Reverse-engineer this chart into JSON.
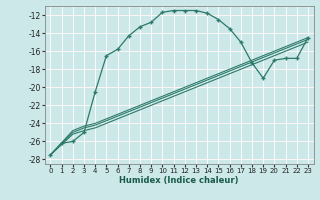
{
  "xlabel": "Humidex (Indice chaleur)",
  "ylabel": "",
  "bg_color": "#cce8e8",
  "line_color": "#2d7a6a",
  "grid_color": "#b0d0d0",
  "xlim": [
    -0.5,
    23.5
  ],
  "ylim": [
    -28.5,
    -11.0
  ],
  "xticks": [
    0,
    1,
    2,
    3,
    4,
    5,
    6,
    7,
    8,
    9,
    10,
    11,
    12,
    13,
    14,
    15,
    16,
    17,
    18,
    19,
    20,
    21,
    22,
    23
  ],
  "yticks": [
    -28,
    -26,
    -24,
    -22,
    -20,
    -18,
    -16,
    -14,
    -12
  ],
  "line1_x": [
    0,
    1,
    2,
    3,
    4,
    5,
    6,
    7,
    8,
    9,
    10,
    11,
    12,
    13,
    14,
    15,
    16,
    17,
    18,
    19,
    20,
    21,
    22,
    23
  ],
  "line1_y": [
    -27.5,
    -26.2,
    -26.0,
    -25.0,
    -20.5,
    -16.5,
    -15.8,
    -14.3,
    -13.3,
    -12.8,
    -11.7,
    -11.5,
    -11.5,
    -11.5,
    -11.8,
    -12.5,
    -13.5,
    -15.0,
    -17.3,
    -19.0,
    -17.0,
    -16.8,
    -16.8,
    -14.5
  ],
  "line2_x": [
    0,
    2,
    3,
    4,
    5,
    6,
    7,
    8,
    9,
    10,
    11,
    12,
    13,
    14,
    15,
    16,
    17,
    18,
    19,
    20,
    21,
    22,
    23
  ],
  "line2_y": [
    -27.5,
    -25.2,
    -24.8,
    -24.5,
    -24.0,
    -23.5,
    -23.0,
    -22.5,
    -22.0,
    -21.5,
    -21.0,
    -20.5,
    -20.0,
    -19.5,
    -19.0,
    -18.5,
    -18.0,
    -17.5,
    -17.0,
    -16.5,
    -16.0,
    -15.5,
    -15.0
  ],
  "line3_x": [
    0,
    2,
    3,
    4,
    5,
    6,
    7,
    8,
    9,
    10,
    11,
    12,
    13,
    14,
    15,
    16,
    17,
    18,
    19,
    20,
    21,
    22,
    23
  ],
  "line3_y": [
    -27.5,
    -25.0,
    -24.5,
    -24.2,
    -23.7,
    -23.2,
    -22.7,
    -22.2,
    -21.7,
    -21.2,
    -20.7,
    -20.2,
    -19.7,
    -19.2,
    -18.7,
    -18.2,
    -17.7,
    -17.2,
    -16.7,
    -16.2,
    -15.7,
    -15.2,
    -14.7
  ],
  "line4_x": [
    0,
    2,
    3,
    4,
    5,
    6,
    7,
    8,
    9,
    10,
    11,
    12,
    13,
    14,
    15,
    16,
    17,
    18,
    19,
    20,
    21,
    22,
    23
  ],
  "line4_y": [
    -27.5,
    -24.8,
    -24.3,
    -24.0,
    -23.5,
    -23.0,
    -22.5,
    -22.0,
    -21.5,
    -21.0,
    -20.5,
    -20.0,
    -19.5,
    -19.0,
    -18.5,
    -18.0,
    -17.5,
    -17.0,
    -16.5,
    -16.0,
    -15.5,
    -15.0,
    -14.5
  ]
}
